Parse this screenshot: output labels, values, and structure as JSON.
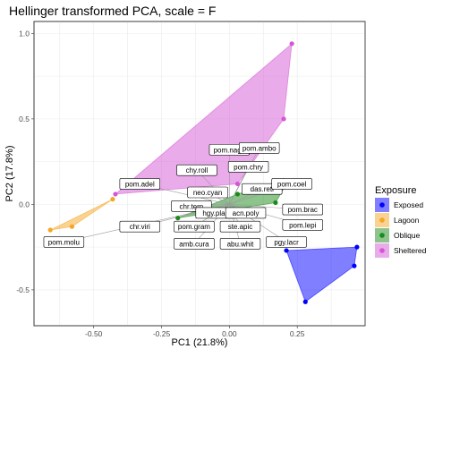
{
  "chart_data": {
    "type": "scatter",
    "title": "Hellinger transformed PCA, scale = F",
    "xlabel": "PC1 (21.8%)",
    "ylabel": "PC2 (17.8%)",
    "xlim": [
      -0.72,
      0.5
    ],
    "ylim": [
      -0.71,
      1.07
    ],
    "x_ticks": [
      -0.5,
      -0.25,
      0.0,
      0.25
    ],
    "x_tick_labels": [
      "-0.50",
      "-0.25",
      "0.00",
      "0.25"
    ],
    "y_ticks": [
      -0.5,
      0.0,
      0.5,
      1.0
    ],
    "y_tick_labels": [
      "-0.5",
      "0.0",
      "0.5",
      "1.0"
    ],
    "grid": true,
    "legend": {
      "title": "Exposure",
      "position": "right",
      "entries": [
        "Exposed",
        "Lagoon",
        "Oblique",
        "Sheltered"
      ]
    },
    "series": [
      {
        "name": "Exposed",
        "color": "#0000ff",
        "points": [
          [
            0.21,
            -0.27
          ],
          [
            0.28,
            -0.57
          ],
          [
            0.46,
            -0.36
          ],
          [
            0.47,
            -0.25
          ]
        ],
        "hull": [
          [
            0.21,
            -0.27
          ],
          [
            0.28,
            -0.57
          ],
          [
            0.46,
            -0.36
          ],
          [
            0.47,
            -0.25
          ]
        ]
      },
      {
        "name": "Lagoon",
        "color": "#f5a623",
        "points": [
          [
            -0.66,
            -0.15
          ],
          [
            -0.58,
            -0.13
          ],
          [
            -0.43,
            0.03
          ]
        ],
        "hull": [
          [
            -0.66,
            -0.15
          ],
          [
            -0.58,
            -0.13
          ],
          [
            -0.43,
            0.03
          ]
        ]
      },
      {
        "name": "Oblique",
        "color": "#1a8a1a",
        "points": [
          [
            -0.19,
            -0.08
          ],
          [
            0.03,
            0.06
          ],
          [
            0.17,
            0.01
          ],
          [
            0.21,
            0.12
          ],
          [
            0.2,
            0.14
          ]
        ],
        "hull": [
          [
            -0.19,
            -0.08
          ],
          [
            0.03,
            0.06
          ],
          [
            0.2,
            0.14
          ],
          [
            0.21,
            0.12
          ],
          [
            0.17,
            0.01
          ]
        ]
      },
      {
        "name": "Sheltered",
        "color": "#d357d3",
        "points": [
          [
            -0.42,
            0.06
          ],
          [
            0.03,
            0.12
          ],
          [
            0.2,
            0.5
          ],
          [
            0.23,
            0.94
          ]
        ],
        "hull": [
          [
            -0.42,
            0.06
          ],
          [
            0.23,
            0.94
          ],
          [
            0.2,
            0.5
          ],
          [
            0.03,
            0.12
          ]
        ]
      }
    ],
    "species": [
      {
        "label": "pom.naga",
        "x": 0.0,
        "y": 0.32,
        "lx": 0.0,
        "ly": 0.32
      },
      {
        "label": "pom.ambo",
        "x": 0.11,
        "y": 0.33,
        "lx": 0.11,
        "ly": 0.33
      },
      {
        "label": "chy.roll",
        "x": -0.12,
        "y": 0.2,
        "lx": -0.12,
        "ly": 0.2
      },
      {
        "label": "pom.chry",
        "x": 0.07,
        "y": 0.22,
        "lx": 0.07,
        "ly": 0.22
      },
      {
        "label": "pom.adel",
        "x": -0.33,
        "y": 0.12,
        "lx": -0.33,
        "ly": 0.12
      },
      {
        "label": "neo.cyan",
        "x": -0.08,
        "y": 0.07,
        "lx": -0.08,
        "ly": 0.07
      },
      {
        "label": "das.reti",
        "x": 0.12,
        "y": 0.09,
        "lx": 0.12,
        "ly": 0.09
      },
      {
        "label": "pom.coel",
        "x": 0.23,
        "y": 0.12,
        "lx": 0.23,
        "ly": 0.12
      },
      {
        "label": "chr.tern",
        "x": -0.14,
        "y": -0.01,
        "lx": -0.14,
        "ly": -0.01
      },
      {
        "label": "hgy.plag",
        "x": -0.05,
        "y": -0.05,
        "lx": -0.05,
        "ly": -0.05
      },
      {
        "label": "acn.poly",
        "x": 0.06,
        "y": -0.05,
        "lx": 0.06,
        "ly": -0.05
      },
      {
        "label": "pom.brac",
        "x": 0.27,
        "y": -0.03,
        "lx": 0.27,
        "ly": -0.03
      },
      {
        "label": "chr.viri",
        "x": -0.33,
        "y": -0.13,
        "lx": -0.33,
        "ly": -0.13
      },
      {
        "label": "pom.gram",
        "x": -0.13,
        "y": -0.13,
        "lx": -0.13,
        "ly": -0.13
      },
      {
        "label": "ste.apic",
        "x": 0.04,
        "y": -0.13,
        "lx": 0.04,
        "ly": -0.13
      },
      {
        "label": "pom.lepi",
        "x": 0.27,
        "y": -0.12,
        "lx": 0.27,
        "ly": -0.12
      },
      {
        "label": "pom.molu",
        "x": -0.61,
        "y": -0.22,
        "lx": -0.61,
        "ly": -0.22
      },
      {
        "label": "amb.cura",
        "x": -0.13,
        "y": -0.23,
        "lx": -0.13,
        "ly": -0.23
      },
      {
        "label": "abu.whit",
        "x": 0.04,
        "y": -0.23,
        "lx": 0.04,
        "ly": -0.23
      },
      {
        "label": "pgy.lacr",
        "x": 0.21,
        "y": -0.22,
        "lx": 0.21,
        "ly": -0.22
      }
    ]
  }
}
